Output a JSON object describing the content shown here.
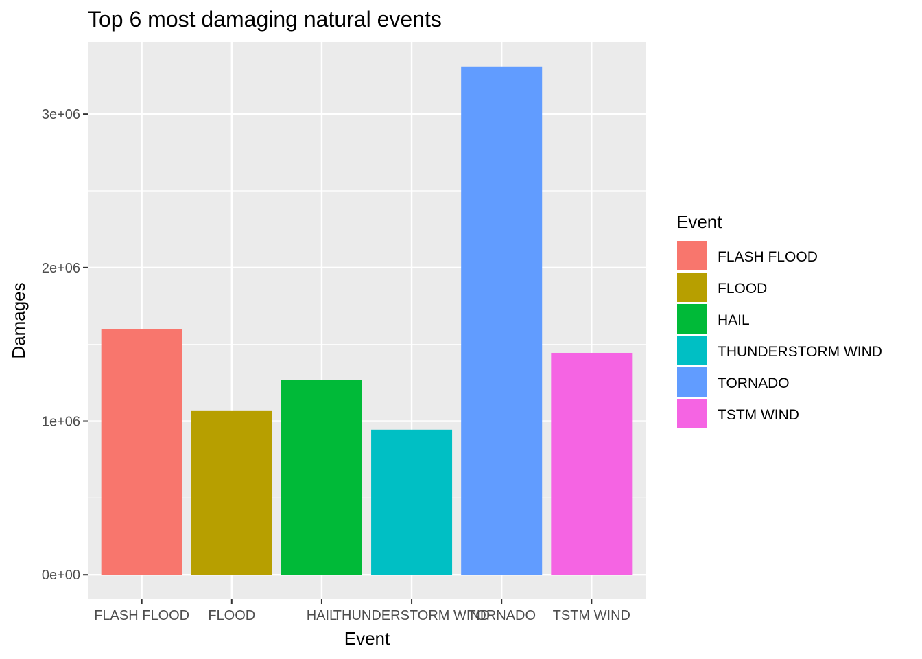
{
  "chart_data": {
    "type": "bar",
    "title": "Top 6 most damaging natural events",
    "xlabel": "Event",
    "ylabel": "Damages",
    "categories": [
      "FLASH FLOOD",
      "FLOOD",
      "HAIL",
      "THUNDERSTORM WIND",
      "TORNADO",
      "TSTM WIND"
    ],
    "values": [
      1600000,
      1070000,
      1270000,
      945000,
      3310000,
      1445000
    ],
    "colors": [
      "#F8766D",
      "#B79F00",
      "#00BA38",
      "#00BFC4",
      "#619CFF",
      "#F564E3"
    ],
    "ylim": [
      -160000,
      3470000
    ],
    "yticks": [
      {
        "value": 0,
        "label": "0e+00"
      },
      {
        "value": 1000000,
        "label": "1e+06"
      },
      {
        "value": 2000000,
        "label": "2e+06"
      },
      {
        "value": 3000000,
        "label": "3e+06"
      }
    ],
    "y_minor_ticks": [
      500000,
      1500000,
      2500000
    ],
    "grid": true,
    "panel_background": "#EBEBEB",
    "legend": {
      "title": "Event",
      "placement": "right",
      "items": [
        "FLASH FLOOD",
        "FLOOD",
        "HAIL",
        "THUNDERSTORM WIND",
        "TORNADO",
        "TSTM WIND"
      ]
    }
  }
}
